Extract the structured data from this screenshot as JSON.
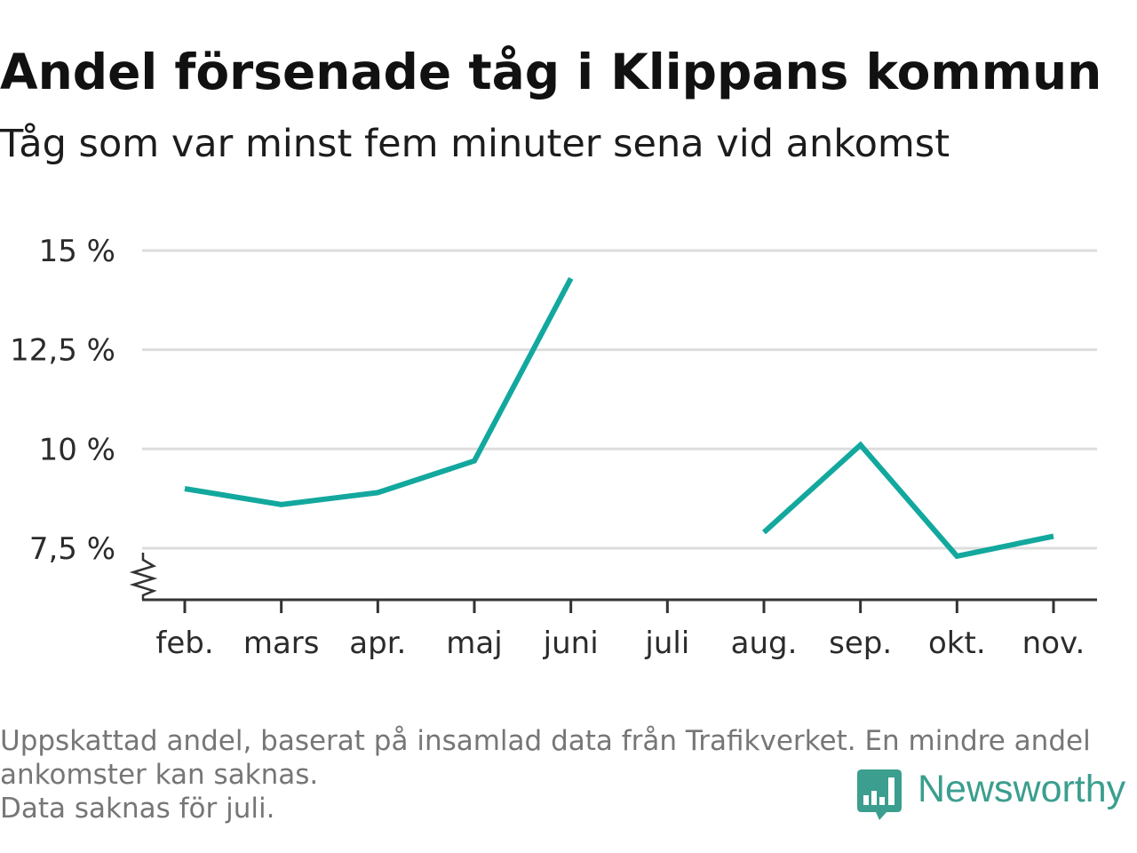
{
  "chart_data": {
    "type": "line",
    "title": "Andel försenade tåg i Klippans kommun",
    "subtitle": "Tåg som var minst fem minuter sena vid ankomst",
    "categories": [
      "feb.",
      "mars",
      "apr.",
      "maj",
      "juni",
      "juli",
      "aug.",
      "sep.",
      "okt.",
      "nov."
    ],
    "series": [
      {
        "values": [
          9.0,
          8.6,
          8.9,
          9.7,
          14.3,
          null,
          7.9,
          10.1,
          7.3,
          7.8
        ]
      }
    ],
    "yticks": [
      7.5,
      10,
      12.5,
      15
    ],
    "ytick_labels": [
      "7,5 %",
      "10 %",
      "12,5 %",
      "15 %"
    ],
    "ylim": [
      6.2,
      15
    ],
    "y_axis_break": true,
    "grid": true,
    "notes": [
      "Uppskattad andel, baserat på insamlad data från Trafikverket. En mindre andel ankomster kan saknas.",
      "Data saknas för juli."
    ]
  },
  "logo": {
    "text": "Newsworthy",
    "icon": "newsworthy-logo-icon"
  },
  "colors": {
    "line": "#13a89e",
    "logo": "#3b9e8e",
    "grid": "#dddddd",
    "axis": "#333333",
    "note": "#767676"
  }
}
